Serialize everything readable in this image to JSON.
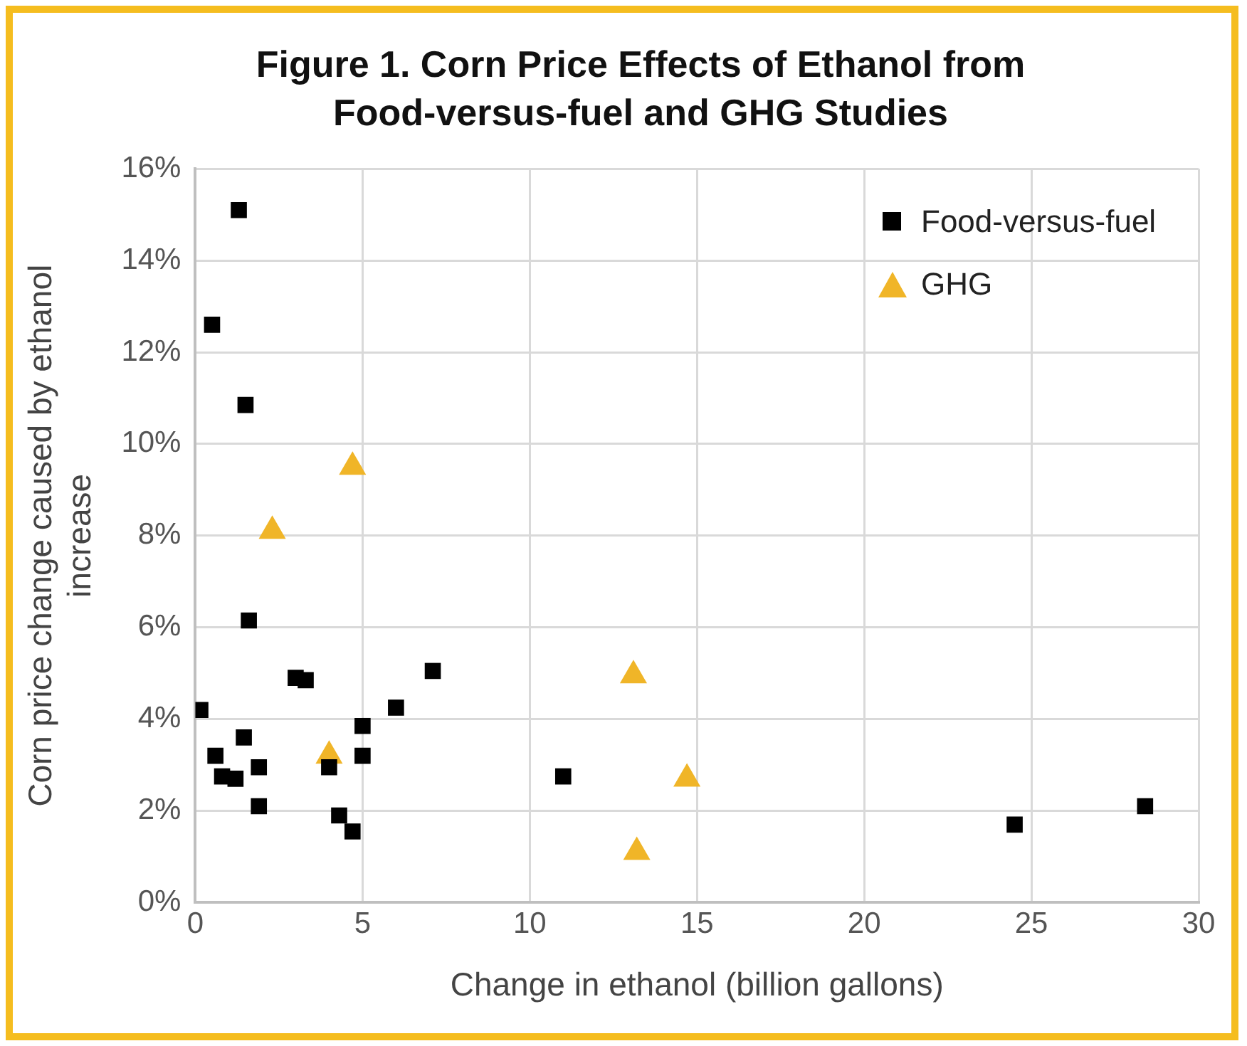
{
  "chart_data": {
    "type": "scatter",
    "title": "Figure 1. Corn Price Effects of Ethanol from Food-versus-fuel and GHG Studies",
    "xlabel": "Change in ethanol (billion gallons)",
    "ylabel": "Corn price change caused by ethanol increase",
    "xlim": [
      0,
      30
    ],
    "xticks": [
      0,
      5,
      10,
      15,
      20,
      25,
      30
    ],
    "ylim": [
      0,
      16
    ],
    "yticks": [
      {
        "value": 0,
        "label": "0%"
      },
      {
        "value": 2,
        "label": "2%"
      },
      {
        "value": 4,
        "label": "4%"
      },
      {
        "value": 6,
        "label": "6%"
      },
      {
        "value": 8,
        "label": "8%"
      },
      {
        "value": 10,
        "label": "10%"
      },
      {
        "value": 12,
        "label": "12%"
      },
      {
        "value": 14,
        "label": "14%"
      },
      {
        "value": 16,
        "label": "16%"
      }
    ],
    "grid": true,
    "legend": "top right",
    "series": [
      {
        "name": "Food-versus-fuel",
        "color": "#000000",
        "marker": "square",
        "x": [
          1.3,
          0.5,
          1.5,
          1.6,
          3.0,
          3.3,
          7.1,
          6.0,
          0.15,
          5.0,
          1.45,
          0.6,
          5.0,
          0.8,
          1.2,
          1.9,
          4.0,
          1.9,
          4.3,
          4.7,
          11.0,
          24.5,
          28.4
        ],
        "values": [
          15.1,
          12.6,
          10.85,
          6.15,
          4.9,
          4.85,
          5.05,
          4.25,
          4.2,
          3.85,
          3.6,
          3.2,
          3.2,
          2.75,
          2.7,
          2.95,
          2.95,
          2.1,
          1.9,
          1.55,
          2.75,
          1.7,
          2.1
        ]
      },
      {
        "name": "GHG",
        "color": "#f0b528",
        "marker": "triangle",
        "x": [
          4.7,
          2.3,
          4.0,
          13.1,
          14.7,
          13.2
        ],
        "values": [
          9.5,
          8.1,
          3.2,
          4.95,
          2.7,
          1.1
        ]
      }
    ]
  }
}
